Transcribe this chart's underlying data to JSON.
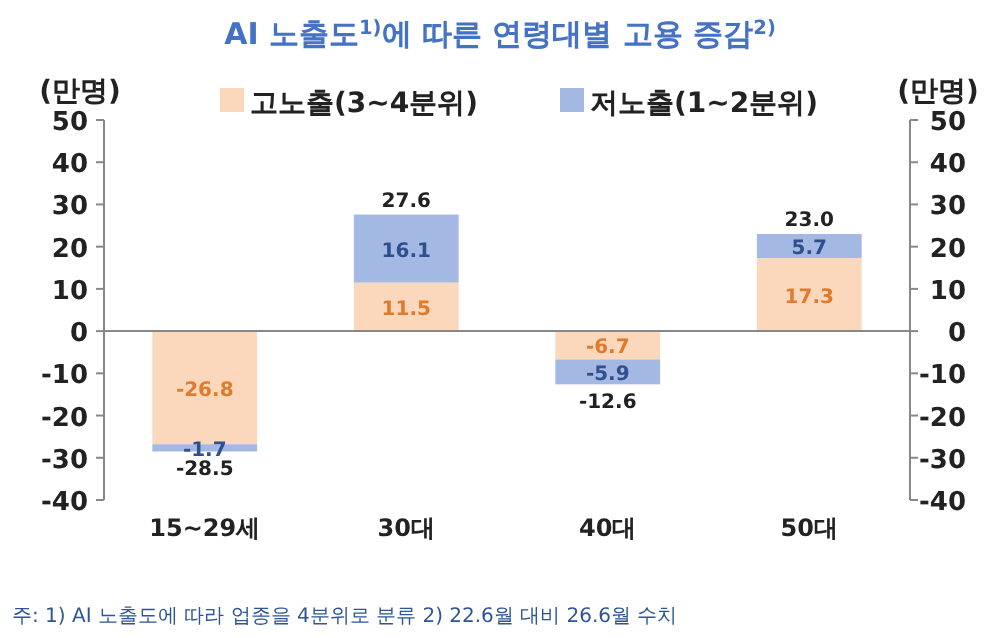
{
  "chart_data": {
    "type": "bar",
    "stacked": true,
    "title": "AI 노출도$^{1)}$에 따른 연령대별 고용 증감$^{2)}$",
    "ylabel": "(만명)",
    "y2label": "(만명)",
    "categories": [
      "15~29세",
      "30대",
      "40대",
      "50대"
    ],
    "series": [
      {
        "name": "고노출(3~4분위)",
        "color": "#fbd7bc",
        "values": [
          -26.8,
          11.5,
          -6.7,
          17.3
        ]
      },
      {
        "name": "저노출(1~2분위)",
        "color": "#a3b8e2",
        "values": [
          -1.7,
          16.1,
          -5.9,
          5.7
        ]
      }
    ],
    "totals": [
      "-28.5",
      "27.6",
      "-12.6",
      "23.0"
    ],
    "data_labels": true,
    "ylim": [
      -40,
      50
    ],
    "yticks": [
      -40,
      -30,
      -20,
      -10,
      0,
      10,
      20,
      30,
      40,
      50
    ],
    "y2lim": [
      -40,
      50
    ],
    "y2ticks": [
      -40,
      -30,
      -20,
      -10,
      0,
      10,
      20,
      30,
      40,
      50
    ],
    "legend": "top",
    "annotations": [
      "주: 1) AI 노출도에 따라 업종을 4분위로 분류   2) 22.6월 대비 26.6월 수치"
    ]
  }
}
